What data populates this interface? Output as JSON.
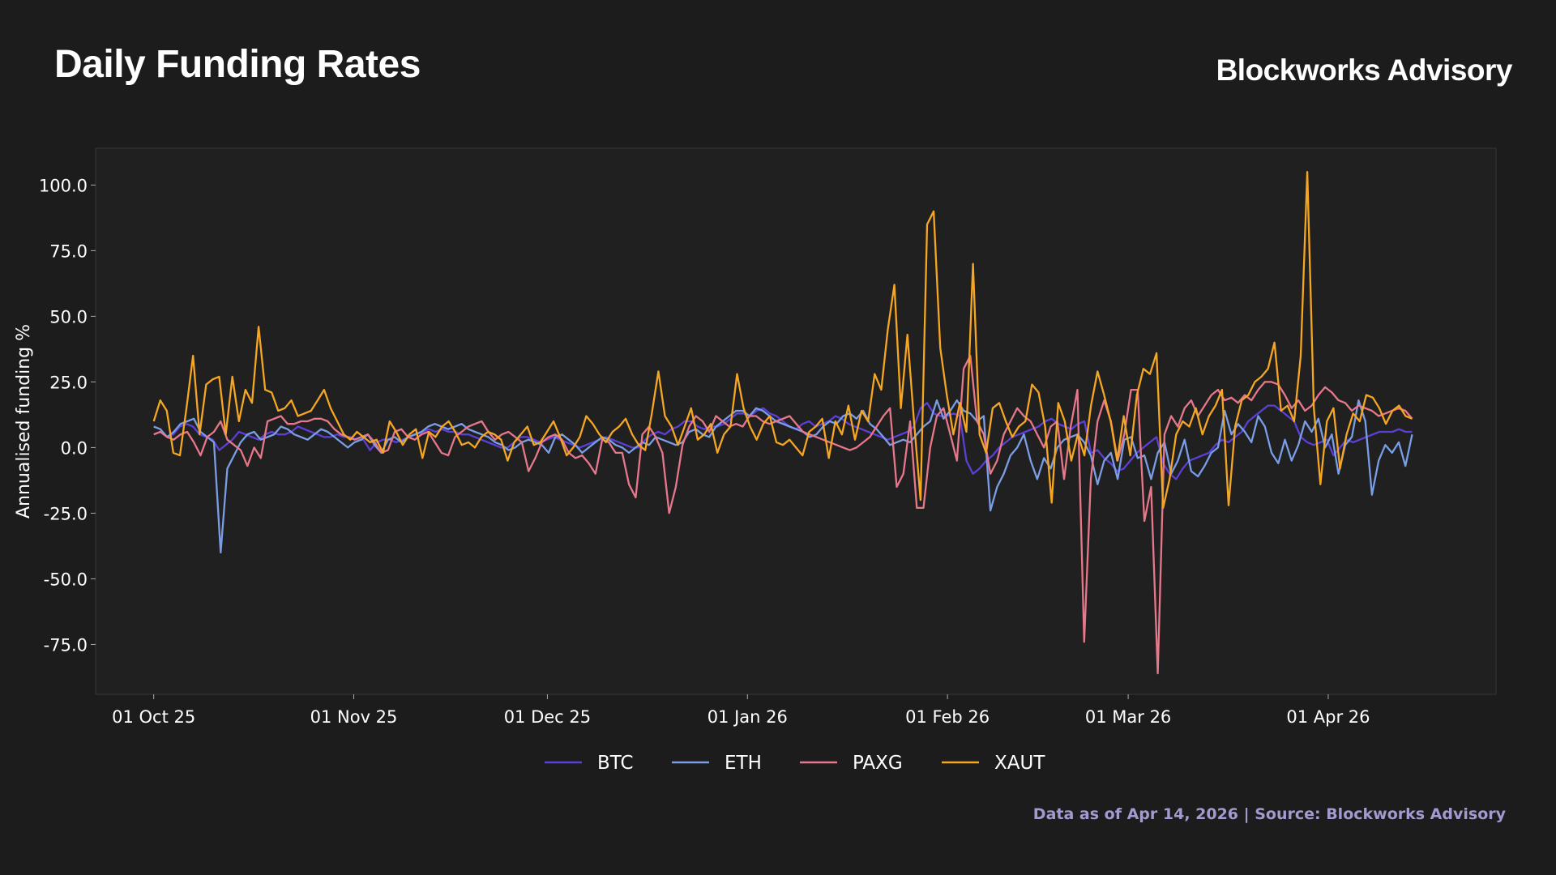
{
  "header": {
    "title": "Daily Funding Rates",
    "brand": "Blockworks Advisory"
  },
  "footer": {
    "note": "Data as of Apr 14, 2026 | Source: Blockworks Advisory"
  },
  "chart_data": {
    "type": "line",
    "title": "Daily Funding Rates",
    "xlabel": "",
    "ylabel": "Annualised funding %",
    "x_start": "2025-10-01",
    "x_end": "2026-04-14",
    "xlim": [
      "2025-09-22",
      "2026-04-27"
    ],
    "ylim": [
      -94,
      114
    ],
    "yticks": [
      100.0,
      75.0,
      50.0,
      25.0,
      0.0,
      -25.0,
      -50.0,
      -75.0
    ],
    "xticks": [
      {
        "date": "2025-10-01",
        "label": "01 Oct 25"
      },
      {
        "date": "2025-11-01",
        "label": "01 Nov 25"
      },
      {
        "date": "2025-12-01",
        "label": "01 Dec 25"
      },
      {
        "date": "2026-01-01",
        "label": "01 Jan 26"
      },
      {
        "date": "2026-02-01",
        "label": "01 Feb 26"
      },
      {
        "date": "2026-03-01",
        "label": "01 Mar 26"
      },
      {
        "date": "2026-04-01",
        "label": "01 Apr 26"
      }
    ],
    "grid": false,
    "legend": "bottom-center",
    "series": [
      {
        "name": "BTC",
        "color": "#5b3fd6",
        "values": [
          5,
          6,
          4,
          5,
          8,
          9,
          8,
          5,
          4,
          3,
          -1,
          1,
          3,
          6,
          5,
          4,
          3,
          5,
          6,
          5,
          5,
          6,
          8,
          7,
          6,
          5,
          4,
          4,
          5,
          4,
          4,
          3,
          3,
          -1,
          2,
          3,
          3,
          2,
          3,
          4,
          5,
          6,
          7,
          6,
          7,
          6,
          6,
          5,
          5,
          4,
          3,
          2,
          1,
          0,
          0,
          2,
          4,
          4,
          3,
          2,
          3,
          4,
          3,
          2,
          1,
          0,
          1,
          2,
          3,
          4,
          3,
          2,
          1,
          0,
          0,
          3,
          5,
          6,
          5,
          7,
          8,
          10,
          10,
          8,
          7,
          8,
          8,
          9,
          11,
          13,
          13,
          12,
          14,
          15,
          13,
          12,
          10,
          8,
          7,
          9,
          10,
          8,
          9,
          10,
          12,
          11,
          9,
          8,
          7,
          6,
          5,
          4,
          3,
          4,
          5,
          6,
          8,
          15,
          17,
          13,
          12,
          12,
          13,
          12,
          -5,
          -10,
          -8,
          -5,
          -3,
          0,
          2,
          4,
          5,
          6,
          7,
          8,
          10,
          11,
          9,
          8,
          7,
          9,
          10,
          -2,
          -1,
          -4,
          -6,
          -9,
          -8,
          -5,
          -2,
          0,
          2,
          4,
          -6,
          -10,
          -12,
          -8,
          -5,
          -4,
          -3,
          -2,
          1,
          3,
          2,
          4,
          6,
          10,
          12,
          14,
          16,
          16,
          14,
          12,
          10,
          4,
          2,
          1,
          2,
          3,
          -3,
          0,
          3,
          2,
          3,
          4,
          5,
          6,
          6,
          6,
          7,
          6,
          6
        ]
      },
      {
        "name": "ETH",
        "color": "#7a9ee6",
        "values": [
          8,
          7,
          4,
          6,
          9,
          10,
          11,
          6,
          4,
          2,
          -40,
          -8,
          -3,
          2,
          5,
          6,
          3,
          4,
          5,
          8,
          7,
          5,
          4,
          3,
          5,
          7,
          6,
          4,
          2,
          0,
          2,
          3,
          5,
          1,
          -2,
          3,
          4,
          2,
          4,
          5,
          6,
          8,
          9,
          8,
          7,
          8,
          9,
          7,
          6,
          5,
          4,
          2,
          1,
          -1,
          0,
          2,
          3,
          2,
          1,
          -2,
          4,
          5,
          3,
          1,
          -2,
          0,
          2,
          4,
          3,
          1,
          0,
          -2,
          0,
          2,
          1,
          4,
          3,
          2,
          1,
          2,
          6,
          7,
          5,
          4,
          8,
          10,
          12,
          14,
          14,
          12,
          15,
          14,
          12,
          10,
          9,
          8,
          7,
          6,
          4,
          5,
          8,
          10,
          9,
          12,
          13,
          11,
          14,
          9,
          7,
          4,
          1,
          2,
          3,
          2,
          5,
          8,
          10,
          18,
          11,
          14,
          18,
          14,
          13,
          10,
          12,
          -24,
          -15,
          -10,
          -3,
          0,
          5,
          -5,
          -12,
          -4,
          -8,
          0,
          3,
          4,
          5,
          2,
          -3,
          -14,
          -5,
          -2,
          -12,
          3,
          4,
          -4,
          -3,
          -12,
          -2,
          2,
          -10,
          -5,
          3,
          -9,
          -11,
          -7,
          -2,
          0,
          14,
          5,
          9,
          6,
          2,
          12,
          8,
          -2,
          -6,
          3,
          -5,
          1,
          10,
          6,
          11,
          0,
          5,
          -10,
          1,
          4,
          18,
          10,
          -18,
          -5,
          1,
          -2,
          2,
          -7,
          5
        ]
      },
      {
        "name": "PAXG",
        "color": "#e7788b",
        "values": [
          5,
          6,
          4,
          3,
          5,
          6,
          2,
          -3,
          4,
          6,
          10,
          3,
          1,
          -1,
          -7,
          0,
          -4,
          10,
          11,
          12,
          9,
          9,
          10,
          10,
          11,
          11,
          10,
          7,
          5,
          4,
          3,
          4,
          5,
          2,
          -2,
          -1,
          6,
          7,
          4,
          3,
          5,
          6,
          2,
          -2,
          -3,
          4,
          6,
          8,
          9,
          10,
          6,
          3,
          5,
          6,
          4,
          2,
          -9,
          -4,
          2,
          4,
          5,
          3,
          -2,
          -4,
          -3,
          -6,
          -10,
          3,
          2,
          -2,
          -2,
          -14,
          -19,
          5,
          8,
          4,
          -2,
          -25,
          -15,
          1,
          8,
          12,
          10,
          6,
          12,
          10,
          8,
          9,
          8,
          12,
          12,
          10,
          9,
          10,
          11,
          12,
          9,
          6,
          5,
          4,
          3,
          2,
          1,
          0,
          -1,
          0,
          2,
          4,
          8,
          12,
          15,
          -15,
          -10,
          10,
          -23,
          -23,
          0,
          12,
          15,
          5,
          -5,
          30,
          35,
          10,
          5,
          -10,
          -5,
          5,
          10,
          15,
          12,
          10,
          5,
          0,
          8,
          10,
          -12,
          8,
          22,
          -74,
          -12,
          10,
          18,
          10,
          -5,
          5,
          22,
          22,
          -28,
          -15,
          -86,
          5,
          12,
          8,
          15,
          18,
          12,
          16,
          20,
          22,
          18,
          19,
          17,
          20,
          18,
          22,
          25,
          25,
          24,
          20,
          15,
          18,
          14,
          16,
          20,
          23,
          21,
          18,
          17,
          14,
          16,
          15,
          14,
          12,
          13,
          14,
          15,
          14,
          11
        ]
      },
      {
        "name": "XAUT",
        "color": "#f5a623",
        "values": [
          10,
          18,
          14,
          -2,
          -3,
          15,
          35,
          5,
          24,
          26,
          27,
          5,
          27,
          10,
          22,
          17,
          46,
          22,
          21,
          14,
          15,
          18,
          12,
          13,
          14,
          18,
          22,
          15,
          10,
          5,
          3,
          6,
          4,
          2,
          3,
          -2,
          10,
          6,
          1,
          5,
          7,
          -4,
          6,
          4,
          8,
          10,
          6,
          1,
          2,
          0,
          4,
          6,
          5,
          3,
          -5,
          2,
          5,
          8,
          1,
          2,
          6,
          10,
          4,
          -3,
          0,
          4,
          12,
          9,
          5,
          2,
          6,
          8,
          11,
          5,
          1,
          -1,
          13,
          29,
          12,
          8,
          1,
          8,
          15,
          3,
          5,
          9,
          -2,
          5,
          8,
          28,
          15,
          8,
          3,
          9,
          12,
          2,
          1,
          3,
          0,
          -3,
          6,
          8,
          11,
          -4,
          10,
          5,
          16,
          3,
          14,
          10,
          28,
          22,
          45,
          62,
          15,
          43,
          10,
          -20,
          85,
          90,
          38,
          20,
          5,
          17,
          6,
          70,
          5,
          -2,
          15,
          17,
          10,
          4,
          8,
          10,
          24,
          21,
          8,
          -21,
          17,
          10,
          -5,
          5,
          -3,
          16,
          29,
          20,
          10,
          -5,
          12,
          -3,
          20,
          30,
          28,
          36,
          -23,
          -12,
          5,
          10,
          8,
          15,
          5,
          12,
          16,
          22,
          -22,
          8,
          18,
          20,
          25,
          27,
          30,
          40,
          14,
          16,
          10,
          35,
          105,
          15,
          -14,
          10,
          15,
          -8,
          5,
          13,
          10,
          20,
          19,
          15,
          9,
          14,
          16,
          12,
          11
        ]
      }
    ]
  }
}
